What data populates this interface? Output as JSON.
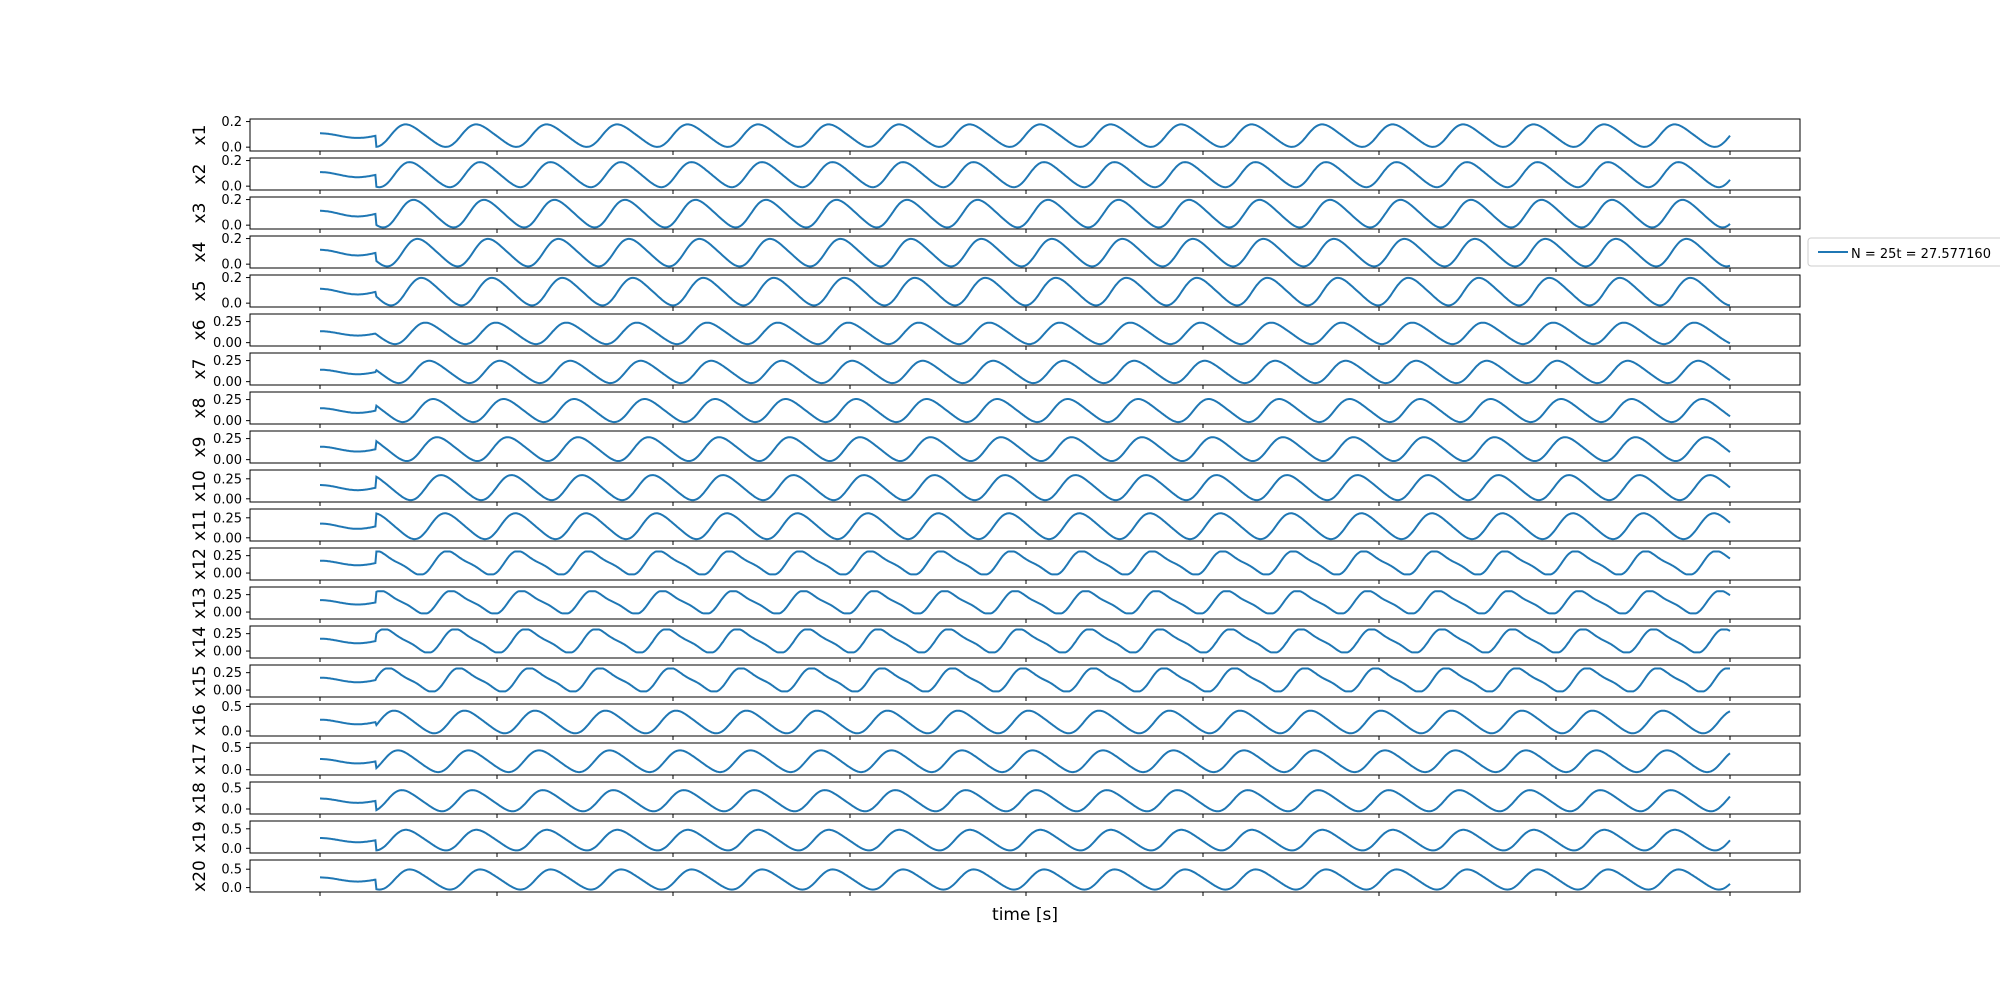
{
  "figure": {
    "xlabel": "time [s]",
    "legend_label": "N = 25t = 27.577160",
    "line_color": "#1f77b4"
  },
  "chart_data": {
    "type": "line",
    "xlabel": "time [s]",
    "x_tick_labels_visible": false,
    "legend": {
      "placement": "right-outside",
      "entries": [
        "N = 25t = 27.577160"
      ]
    },
    "panels": [
      {
        "name": "x1",
        "yticks": [
          "0.0",
          "0.2"
        ],
        "ylim": [
          -0.03,
          0.22
        ],
        "amplitude_range": [
          0.0,
          0.18
        ],
        "periods": 20
      },
      {
        "name": "x2",
        "yticks": [
          "0.0",
          "0.2"
        ],
        "ylim": [
          -0.03,
          0.22
        ],
        "amplitude_range": [
          -0.01,
          0.19
        ],
        "periods": 20
      },
      {
        "name": "x3",
        "yticks": [
          "0.0",
          "0.2"
        ],
        "ylim": [
          -0.03,
          0.22
        ],
        "amplitude_range": [
          -0.02,
          0.2
        ],
        "periods": 20
      },
      {
        "name": "x4",
        "yticks": [
          "0.0",
          "0.2"
        ],
        "ylim": [
          -0.03,
          0.22
        ],
        "amplitude_range": [
          -0.02,
          0.2
        ],
        "periods": 20
      },
      {
        "name": "x5",
        "yticks": [
          "0.0",
          "0.2"
        ],
        "ylim": [
          -0.03,
          0.22
        ],
        "amplitude_range": [
          -0.02,
          0.2
        ],
        "periods": 20
      },
      {
        "name": "x6",
        "yticks": [
          "0.00",
          "0.25"
        ],
        "ylim": [
          -0.04,
          0.34
        ],
        "amplitude_range": [
          -0.02,
          0.24
        ],
        "periods": 20
      },
      {
        "name": "x7",
        "yticks": [
          "0.00",
          "0.25"
        ],
        "ylim": [
          -0.04,
          0.34
        ],
        "amplitude_range": [
          -0.02,
          0.25
        ],
        "periods": 20
      },
      {
        "name": "x8",
        "yticks": [
          "0.00",
          "0.25"
        ],
        "ylim": [
          -0.04,
          0.34
        ],
        "amplitude_range": [
          -0.02,
          0.26
        ],
        "periods": 20
      },
      {
        "name": "x9",
        "yticks": [
          "0.00",
          "0.25"
        ],
        "ylim": [
          -0.04,
          0.34
        ],
        "amplitude_range": [
          -0.02,
          0.27
        ],
        "periods": 20
      },
      {
        "name": "x10",
        "yticks": [
          "0.00",
          "0.25"
        ],
        "ylim": [
          -0.04,
          0.36
        ],
        "amplitude_range": [
          -0.02,
          0.3
        ],
        "periods": 20
      },
      {
        "name": "x11",
        "yticks": [
          "0.00",
          "0.25"
        ],
        "ylim": [
          -0.04,
          0.36
        ],
        "amplitude_range": [
          -0.02,
          0.31
        ],
        "periods": 20
      },
      {
        "name": "x12",
        "yticks": [
          "0.00",
          "0.25"
        ],
        "ylim": [
          -0.1,
          0.36
        ],
        "amplitude_range": [
          -0.02,
          0.31
        ],
        "periods": 20
      },
      {
        "name": "x13",
        "yticks": [
          "0.00",
          "0.25"
        ],
        "ylim": [
          -0.1,
          0.36
        ],
        "amplitude_range": [
          -0.02,
          0.3
        ],
        "periods": 20
      },
      {
        "name": "x14",
        "yticks": [
          "0.00",
          "0.25"
        ],
        "ylim": [
          -0.1,
          0.36
        ],
        "amplitude_range": [
          -0.02,
          0.31
        ],
        "periods": 20
      },
      {
        "name": "x15",
        "yticks": [
          "0.00",
          "0.25"
        ],
        "ylim": [
          -0.1,
          0.36
        ],
        "amplitude_range": [
          -0.02,
          0.31
        ],
        "periods": 20
      },
      {
        "name": "x16",
        "yticks": [
          "0.0",
          "0.5"
        ],
        "ylim": [
          -0.1,
          0.55
        ],
        "amplitude_range": [
          -0.05,
          0.42
        ],
        "periods": 20
      },
      {
        "name": "x17",
        "yticks": [
          "0.0",
          "0.5"
        ],
        "ylim": [
          -0.12,
          0.6
        ],
        "amplitude_range": [
          -0.06,
          0.44
        ],
        "periods": 20
      },
      {
        "name": "x18",
        "yticks": [
          "0.0",
          "0.5"
        ],
        "ylim": [
          -0.12,
          0.65
        ],
        "amplitude_range": [
          -0.06,
          0.46
        ],
        "periods": 20
      },
      {
        "name": "x19",
        "yticks": [
          "0.0",
          "0.5"
        ],
        "ylim": [
          -0.12,
          0.7
        ],
        "amplitude_range": [
          -0.06,
          0.48
        ],
        "periods": 20
      },
      {
        "name": "x20",
        "yticks": [
          "0.0",
          "0.5"
        ],
        "ylim": [
          -0.12,
          0.75
        ],
        "amplitude_range": [
          -0.06,
          0.5
        ],
        "periods": 20
      }
    ]
  }
}
